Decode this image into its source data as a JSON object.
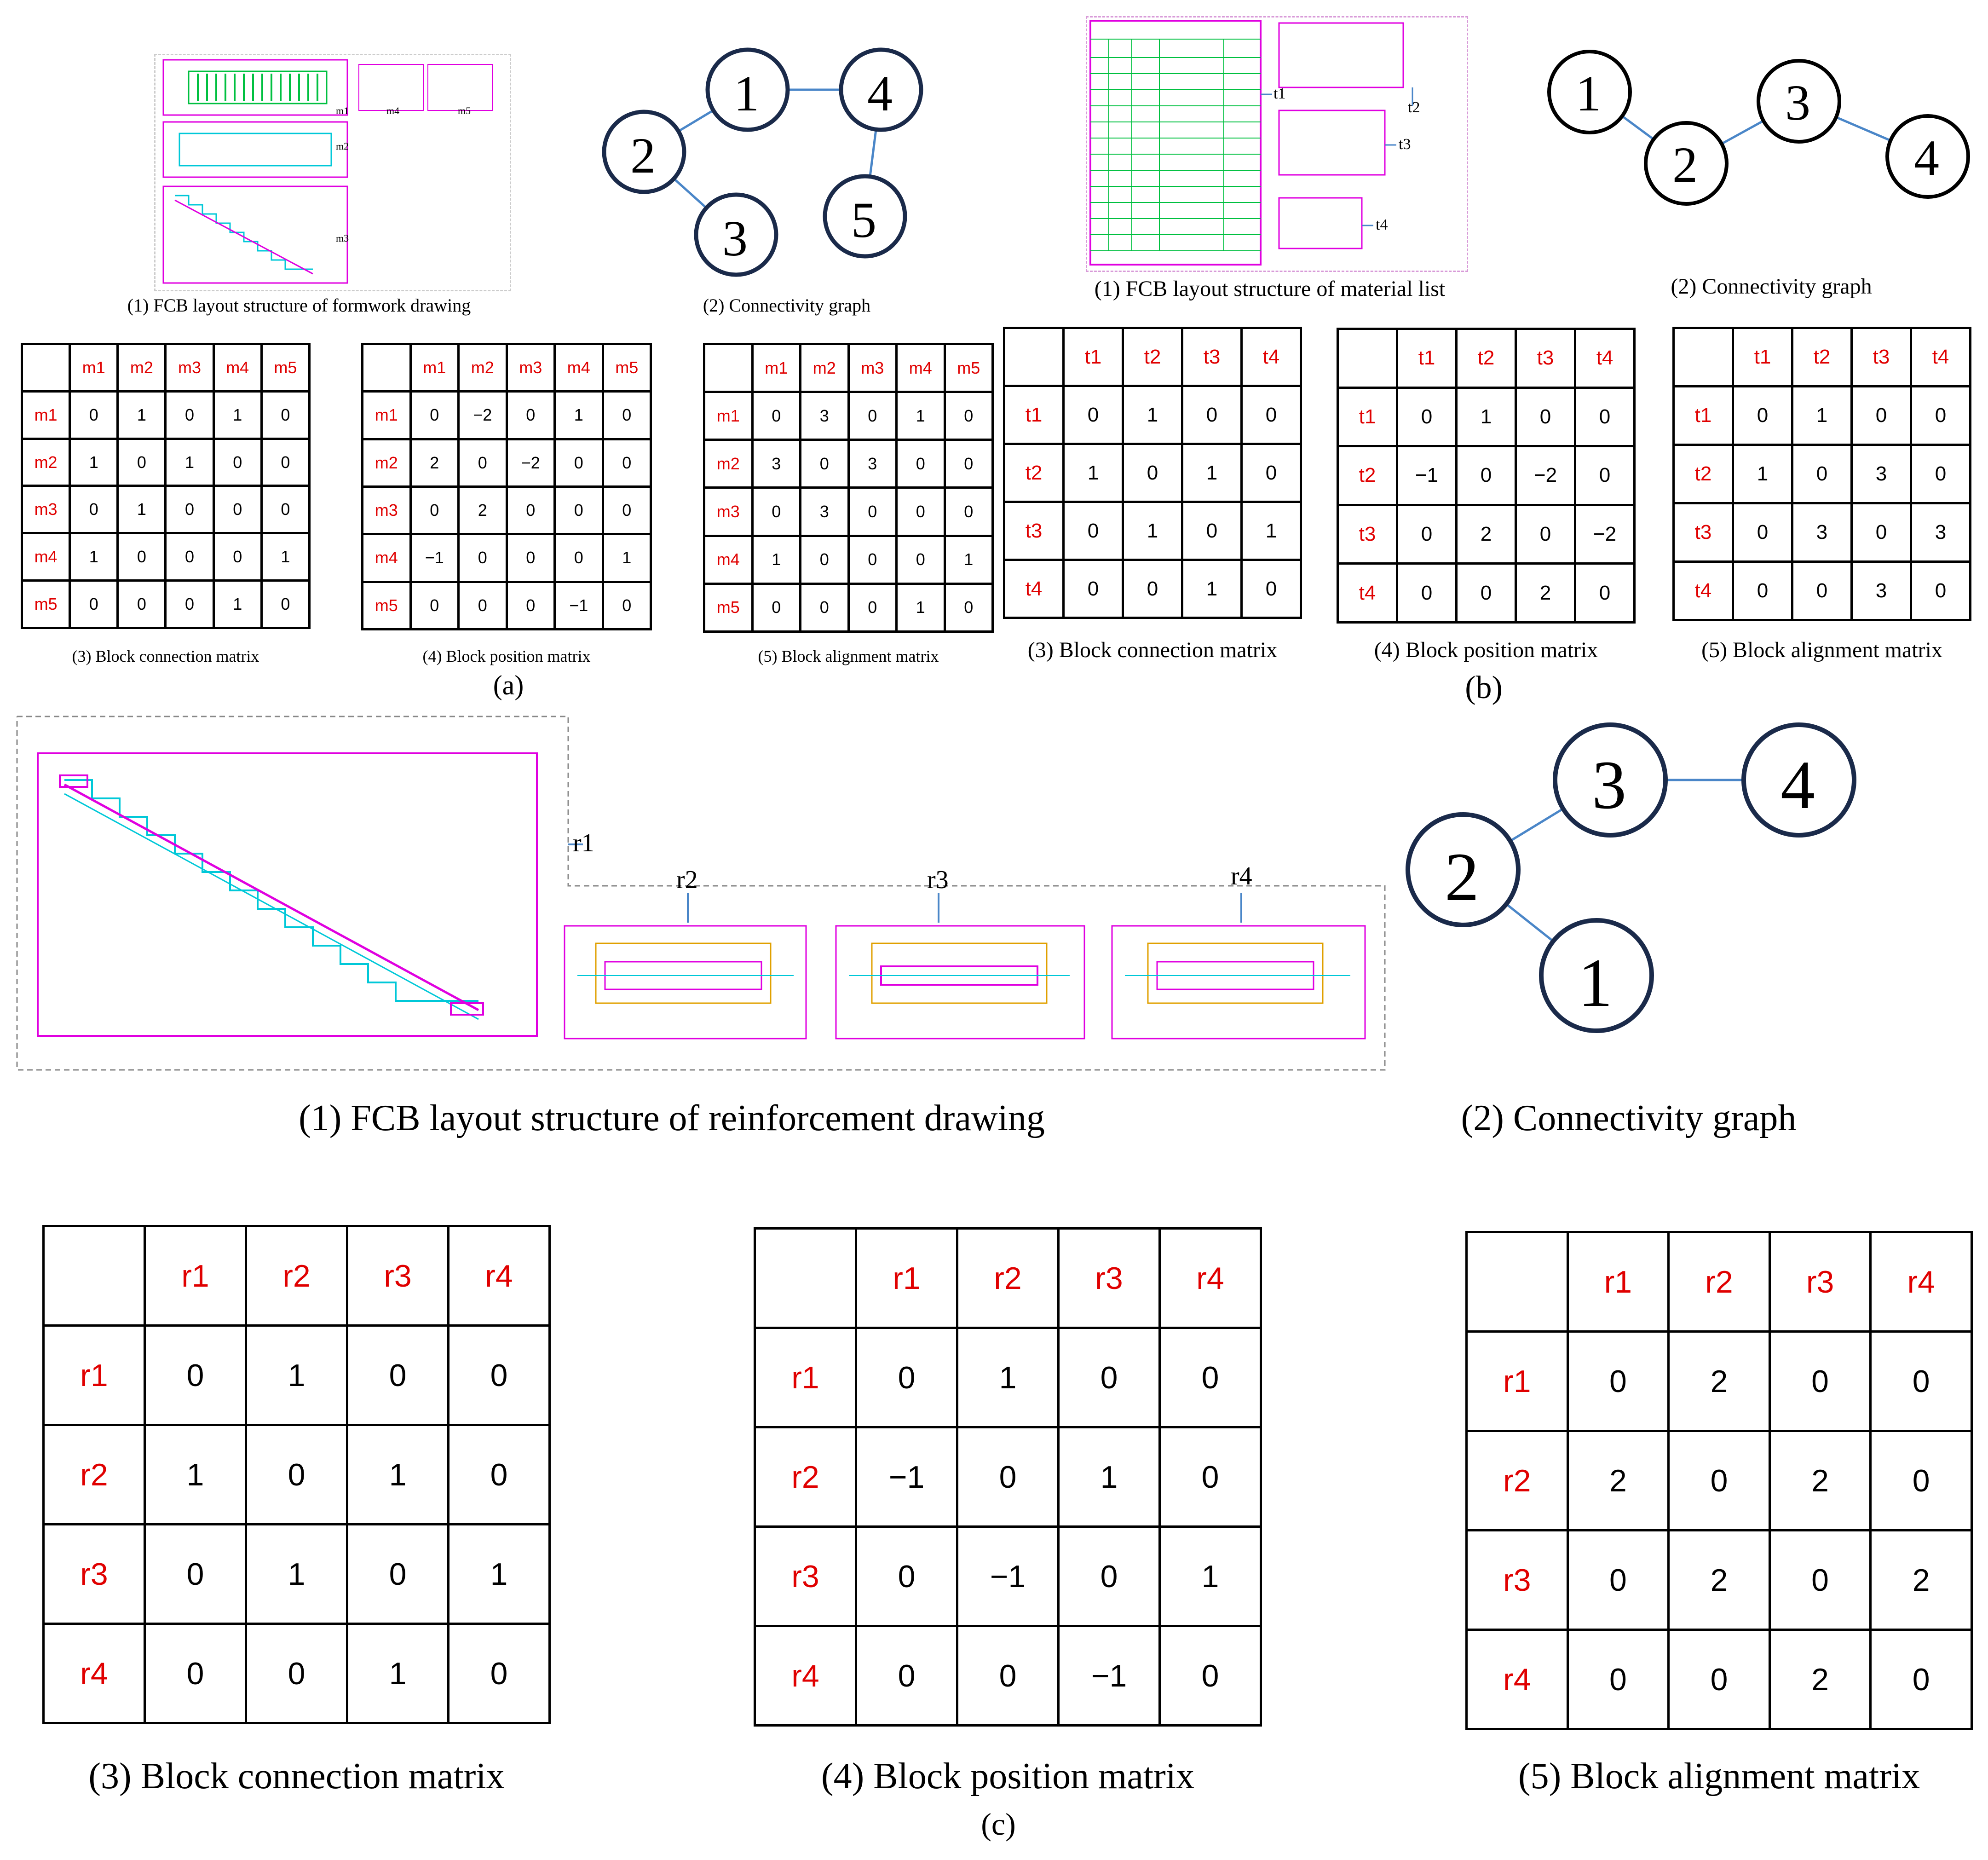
{
  "panel_a": {
    "label": "(a)",
    "layout_caption": "(1) FCB layout structure of formwork drawing",
    "graph_caption": "(2) Connectivity graph",
    "block_labels": [
      "m1",
      "m2",
      "m3",
      "m4",
      "m5"
    ],
    "graph_nodes": [
      "1",
      "2",
      "3",
      "4",
      "5"
    ],
    "matrices": [
      {
        "caption": "(3) Block connection matrix",
        "headers": [
          "m1",
          "m2",
          "m3",
          "m4",
          "m5"
        ],
        "rows": [
          [
            "0",
            "1",
            "0",
            "1",
            "0"
          ],
          [
            "1",
            "0",
            "1",
            "0",
            "0"
          ],
          [
            "0",
            "1",
            "0",
            "0",
            "0"
          ],
          [
            "1",
            "0",
            "0",
            "0",
            "1"
          ],
          [
            "0",
            "0",
            "0",
            "1",
            "0"
          ]
        ]
      },
      {
        "caption": "(4) Block position matrix",
        "headers": [
          "m1",
          "m2",
          "m3",
          "m4",
          "m5"
        ],
        "rows": [
          [
            "0",
            "−2",
            "0",
            "1",
            "0"
          ],
          [
            "2",
            "0",
            "−2",
            "0",
            "0"
          ],
          [
            "0",
            "2",
            "0",
            "0",
            "0"
          ],
          [
            "−1",
            "0",
            "0",
            "0",
            "1"
          ],
          [
            "0",
            "0",
            "0",
            "−1",
            "0"
          ]
        ]
      },
      {
        "caption": "(5) Block alignment matrix",
        "headers": [
          "m1",
          "m2",
          "m3",
          "m4",
          "m5"
        ],
        "rows": [
          [
            "0",
            "3",
            "0",
            "1",
            "0"
          ],
          [
            "3",
            "0",
            "3",
            "0",
            "0"
          ],
          [
            "0",
            "3",
            "0",
            "0",
            "0"
          ],
          [
            "1",
            "0",
            "0",
            "0",
            "1"
          ],
          [
            "0",
            "0",
            "0",
            "1",
            "0"
          ]
        ]
      }
    ]
  },
  "panel_b": {
    "label": "(b)",
    "layout_caption": "(1) FCB layout structure of material list",
    "graph_caption": "(2) Connectivity graph",
    "block_labels": [
      "t1",
      "t2",
      "t3",
      "t4"
    ],
    "graph_nodes": [
      "1",
      "2",
      "3",
      "4"
    ],
    "matrices": [
      {
        "caption": "(3) Block connection matrix",
        "headers": [
          "t1",
          "t2",
          "t3",
          "t4"
        ],
        "rows": [
          [
            "0",
            "1",
            "0",
            "0"
          ],
          [
            "1",
            "0",
            "1",
            "0"
          ],
          [
            "0",
            "1",
            "0",
            "1"
          ],
          [
            "0",
            "0",
            "1",
            "0"
          ]
        ]
      },
      {
        "caption": "(4) Block position matrix",
        "headers": [
          "t1",
          "t2",
          "t3",
          "t4"
        ],
        "rows": [
          [
            "0",
            "1",
            "0",
            "0"
          ],
          [
            "−1",
            "0",
            "−2",
            "0"
          ],
          [
            "0",
            "2",
            "0",
            "−2"
          ],
          [
            "0",
            "0",
            "2",
            "0"
          ]
        ]
      },
      {
        "caption": "(5) Block alignment matrix",
        "headers": [
          "t1",
          "t2",
          "t3",
          "t4"
        ],
        "rows": [
          [
            "0",
            "1",
            "0",
            "0"
          ],
          [
            "1",
            "0",
            "3",
            "0"
          ],
          [
            "0",
            "3",
            "0",
            "3"
          ],
          [
            "0",
            "0",
            "3",
            "0"
          ]
        ]
      }
    ]
  },
  "panel_c": {
    "label": "(c)",
    "layout_caption": "(1) FCB layout structure of reinforcement drawing",
    "graph_caption": "(2) Connectivity graph",
    "block_labels": [
      "r1",
      "r2",
      "r3",
      "r4"
    ],
    "graph_nodes": [
      "1",
      "2",
      "3",
      "4"
    ],
    "matrices": [
      {
        "caption": "(3) Block connection matrix",
        "headers": [
          "r1",
          "r2",
          "r3",
          "r4"
        ],
        "rows": [
          [
            "0",
            "1",
            "0",
            "0"
          ],
          [
            "1",
            "0",
            "1",
            "0"
          ],
          [
            "0",
            "1",
            "0",
            "1"
          ],
          [
            "0",
            "0",
            "1",
            "0"
          ]
        ]
      },
      {
        "caption": "(4) Block position matrix",
        "headers": [
          "r1",
          "r2",
          "r3",
          "r4"
        ],
        "rows": [
          [
            "0",
            "1",
            "0",
            "0"
          ],
          [
            "−1",
            "0",
            "1",
            "0"
          ],
          [
            "0",
            "−1",
            "0",
            "1"
          ],
          [
            "0",
            "0",
            "−1",
            "0"
          ]
        ]
      },
      {
        "caption": "(5) Block alignment matrix",
        "headers": [
          "r1",
          "r2",
          "r3",
          "r4"
        ],
        "rows": [
          [
            "0",
            "2",
            "0",
            "0"
          ],
          [
            "2",
            "0",
            "2",
            "0"
          ],
          [
            "0",
            "2",
            "0",
            "2"
          ],
          [
            "0",
            "0",
            "2",
            "0"
          ]
        ]
      }
    ]
  },
  "colors": {
    "header_text": "#e00000",
    "graph_node_fill": "#ffffff",
    "graph_node_stroke": "#1a2a4a",
    "graph_edge": "#4a86c8",
    "drawing_magenta": "#e000e0",
    "drawing_cyan": "#00c8d8",
    "drawing_green": "#00c040"
  }
}
